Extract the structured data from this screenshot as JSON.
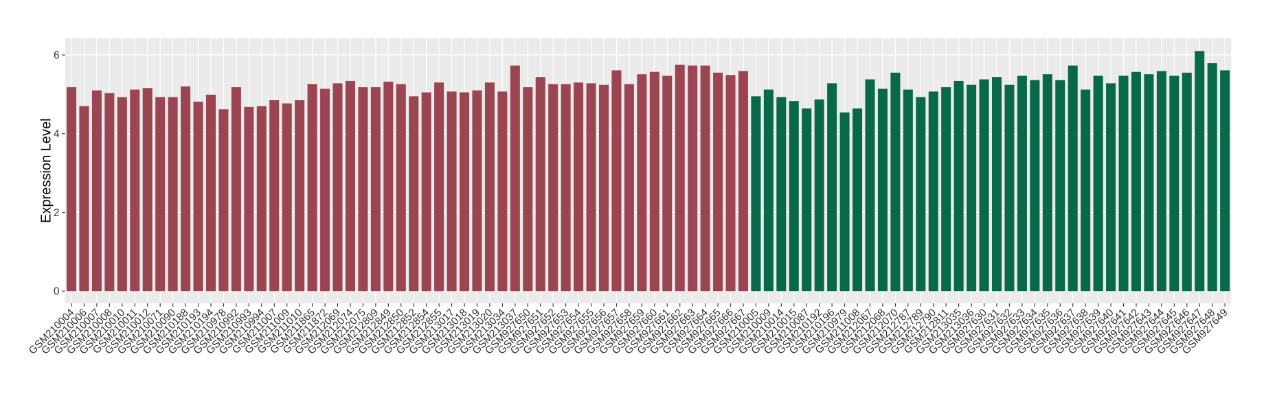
{
  "chart_data": {
    "type": "bar",
    "y_label": "Expression Level",
    "categories": [
      "GSM210004",
      "GSM210006",
      "GSM210007",
      "GSM210008",
      "GSM210010",
      "GSM210011",
      "GSM210012",
      "GSM210071",
      "GSM210090",
      "GSM210188",
      "GSM210193",
      "GSM210194",
      "GSM210978",
      "GSM210992",
      "GSM210993",
      "GSM210994",
      "GSM211007",
      "GSM211009",
      "GSM211010",
      "GSM211865",
      "GSM211872",
      "GSM212069",
      "GSM212074",
      "GSM212075",
      "GSM212809",
      "GSM212849",
      "GSM212850",
      "GSM212852",
      "GSM212854",
      "GSM212855",
      "GSM213017",
      "GSM213018",
      "GSM213019",
      "GSM213020",
      "GSM213034",
      "GSM213037",
      "GSM927650",
      "GSM927651",
      "GSM927652",
      "GSM927653",
      "GSM927654",
      "GSM927655",
      "GSM927656",
      "GSM927657",
      "GSM927658",
      "GSM927659",
      "GSM927660",
      "GSM927661",
      "GSM927662",
      "GSM927663",
      "GSM927664",
      "GSM927665",
      "GSM927666",
      "GSM927667",
      "GSM210005",
      "GSM210009",
      "GSM210014",
      "GSM210015",
      "GSM210087",
      "GSM210192",
      "GSM210196",
      "GSM210979",
      "GSM211008",
      "GSM212067",
      "GSM212068",
      "GSM212070",
      "GSM212787",
      "GSM212789",
      "GSM212790",
      "GSM212811",
      "GSM213035",
      "GSM213036",
      "GSM927630",
      "GSM927631",
      "GSM927632",
      "GSM927633",
      "GSM927634",
      "GSM927635",
      "GSM927636",
      "GSM927637",
      "GSM927638",
      "GSM927639",
      "GSM927640",
      "GSM927641",
      "GSM927642",
      "GSM927643",
      "GSM927644",
      "GSM927645",
      "GSM927646",
      "GSM927647",
      "GSM927648",
      "GSM927649"
    ],
    "series": [
      {
        "color": "#9b4452",
        "values": [
          5.18,
          4.7,
          5.1,
          5.03,
          4.93,
          5.12,
          5.16,
          4.93,
          4.93,
          5.2,
          4.81,
          4.99,
          4.62,
          5.18,
          4.68,
          4.7,
          4.85,
          4.77,
          4.85,
          5.26,
          5.14,
          5.28,
          5.34,
          5.18,
          5.18,
          5.32,
          5.26,
          4.95,
          5.05,
          5.3,
          5.07,
          5.05,
          5.1,
          5.3,
          5.07,
          5.73,
          5.18,
          5.44,
          5.26,
          5.26,
          5.3,
          5.28,
          5.24,
          5.61,
          5.26,
          5.51,
          5.57,
          5.47,
          5.75,
          5.73,
          5.73,
          5.55,
          5.49,
          5.59,
          null,
          null,
          null,
          null,
          null,
          null,
          null,
          null,
          null,
          null,
          null,
          null,
          null,
          null,
          null,
          null,
          null,
          null,
          null,
          null,
          null,
          null,
          null,
          null,
          null,
          null,
          null,
          null,
          null,
          null,
          null,
          null,
          null,
          null,
          null,
          null,
          null,
          null
        ]
      },
      {
        "color": "#08694a",
        "values": [
          null,
          null,
          null,
          null,
          null,
          null,
          null,
          null,
          null,
          null,
          null,
          null,
          null,
          null,
          null,
          null,
          null,
          null,
          null,
          null,
          null,
          null,
          null,
          null,
          null,
          null,
          null,
          null,
          null,
          null,
          null,
          null,
          null,
          null,
          null,
          null,
          null,
          null,
          null,
          null,
          null,
          null,
          null,
          null,
          null,
          null,
          null,
          null,
          null,
          null,
          null,
          null,
          null,
          null,
          4.95,
          5.12,
          4.93,
          4.83,
          4.64,
          4.87,
          5.28,
          4.54,
          4.64,
          5.38,
          5.14,
          5.55,
          5.12,
          4.93,
          5.07,
          5.18,
          5.34,
          5.24,
          5.38,
          5.44,
          5.24,
          5.47,
          5.36,
          5.51,
          5.36,
          5.73,
          5.12,
          5.47,
          5.28,
          5.47,
          5.57,
          5.51,
          5.59,
          5.47,
          5.55,
          6.1,
          5.79,
          5.61
        ]
      }
    ],
    "ylim": [
      -0.31,
      6.43
    ],
    "yticks": [
      0,
      2,
      4,
      6
    ],
    "grid": true
  }
}
